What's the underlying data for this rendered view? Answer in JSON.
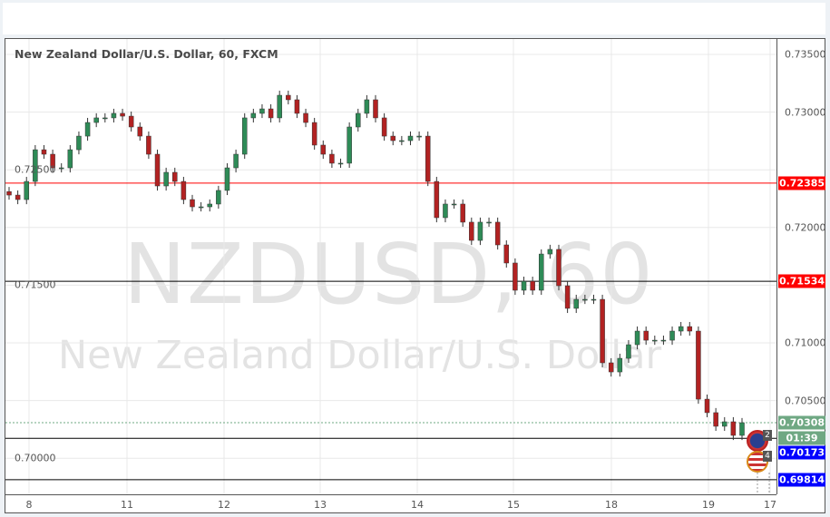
{
  "title": "New Zealand Dollar/U.S. Dollar, 60, FXCM",
  "watermark": {
    "symbol": "NZDUSD, 60",
    "name": "New Zealand Dollar/U.S. Dollar"
  },
  "colors": {
    "up": "#2e8b57",
    "down": "#b22222",
    "wick": "#333333",
    "resistance": "#ff0000",
    "support": "#000000",
    "current": "#6fa883",
    "blue_label": "#0000ff",
    "red_label": "#ff0000"
  },
  "chart_data": {
    "type": "candlestick",
    "title": "New Zealand Dollar/U.S. Dollar, 60, FXCM",
    "ylim": [
      0.6975,
      0.7364
    ],
    "grid": true,
    "x_tick_labels": [
      "8",
      "11",
      "12",
      "13",
      "14",
      "15",
      "18",
      "19",
      "17"
    ],
    "y_tick_labels": [
      "0.73500",
      "0.73000",
      "0.72500",
      "0.72000",
      "0.71500",
      "0.71000",
      "0.70500",
      "0.70000"
    ],
    "y_ticks": [
      0.735,
      0.73,
      0.725,
      0.72,
      0.715,
      0.71,
      0.705,
      0.7
    ],
    "closes": [
      0.72281,
      0.72242,
      0.72399,
      0.72674,
      0.72635,
      0.72517,
      0.72517,
      0.72674,
      0.72792,
      0.7291,
      0.7295,
      0.7295,
      0.72989,
      0.72965,
      0.72871,
      0.72792,
      0.72635,
      0.7236,
      0.72478,
      0.72399,
      0.72242,
      0.72179,
      0.72179,
      0.72203,
      0.72321,
      0.72517,
      0.72635,
      0.7295,
      0.72989,
      0.73028,
      0.7295,
      0.73146,
      0.73107,
      0.72989,
      0.7291,
      0.72714,
      0.72635,
      0.72557,
      0.72557,
      0.72871,
      0.72989,
      0.73107,
      0.7295,
      0.72792,
      0.72753,
      0.72753,
      0.72792,
      0.72792,
      0.72399,
      0.72085,
      0.72203,
      0.72203,
      0.72046,
      0.71888,
      0.72046,
      0.72046,
      0.71849,
      0.71692,
      0.71456,
      0.71534,
      0.71456,
      0.7177,
      0.7181,
      0.71495,
      0.71299,
      0.71377,
      0.71377,
      0.71377,
      0.70827,
      0.70748,
      0.70866,
      0.70984,
      0.71102,
      0.71023,
      0.71023,
      0.71023,
      0.71102,
      0.71141,
      0.71102,
      0.70512,
      0.70395,
      0.70277,
      0.70316,
      0.70198,
      0.70308
    ],
    "horizontal_lines": [
      {
        "price": 0.72385,
        "label": "0.72385",
        "style": "resistance"
      },
      {
        "price": 0.71534,
        "label": "0.71534",
        "style": "resistance"
      },
      {
        "price": 0.70173,
        "label": "0.70173",
        "style": "support"
      },
      {
        "price": 0.69814,
        "label": "0.69814",
        "style": "support"
      }
    ],
    "current_price": {
      "price": 0.70308,
      "label": "0.70308",
      "countdown": "01:39"
    }
  },
  "events": [
    {
      "flag": "NZ",
      "count": "2"
    },
    {
      "flag": "US",
      "count": "4"
    }
  ]
}
